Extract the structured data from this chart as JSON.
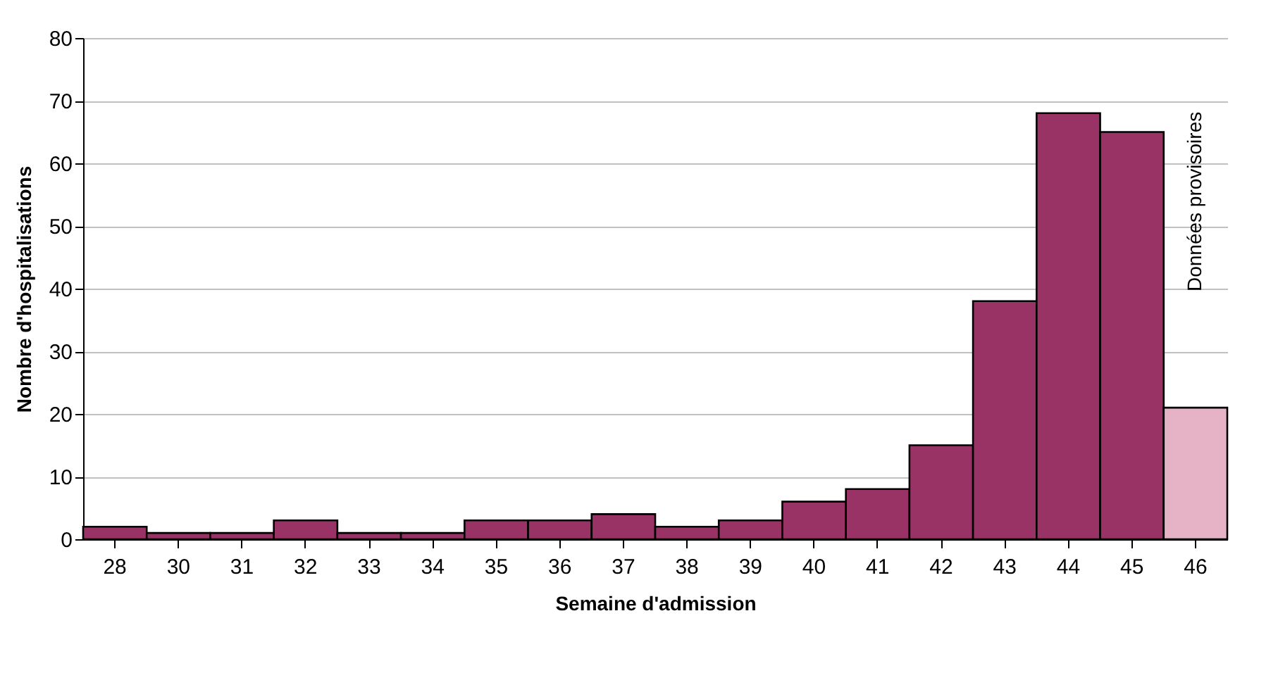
{
  "chart_data": {
    "type": "bar",
    "xlabel": "Semaine d'admission",
    "ylabel": "Nombre d'hospitalisations",
    "categories": [
      "28",
      "30",
      "31",
      "32",
      "33",
      "34",
      "35",
      "36",
      "37",
      "38",
      "39",
      "40",
      "41",
      "42",
      "43",
      "44",
      "45",
      "46"
    ],
    "values": [
      2,
      1,
      1,
      3,
      1,
      1,
      3,
      3,
      4,
      2,
      3,
      6,
      8,
      15,
      38,
      68,
      65,
      21
    ],
    "colors": [
      "#993366",
      "#993366",
      "#993366",
      "#993366",
      "#993366",
      "#993366",
      "#993366",
      "#993366",
      "#993366",
      "#993366",
      "#993366",
      "#993366",
      "#993366",
      "#993366",
      "#993366",
      "#993366",
      "#993366",
      "#e6b3c6"
    ],
    "ylim": [
      0,
      80
    ],
    "yticks": [
      0,
      10,
      20,
      30,
      40,
      50,
      60,
      70,
      80
    ],
    "grid": "y",
    "annotations": [
      "Données provisoires"
    ]
  }
}
